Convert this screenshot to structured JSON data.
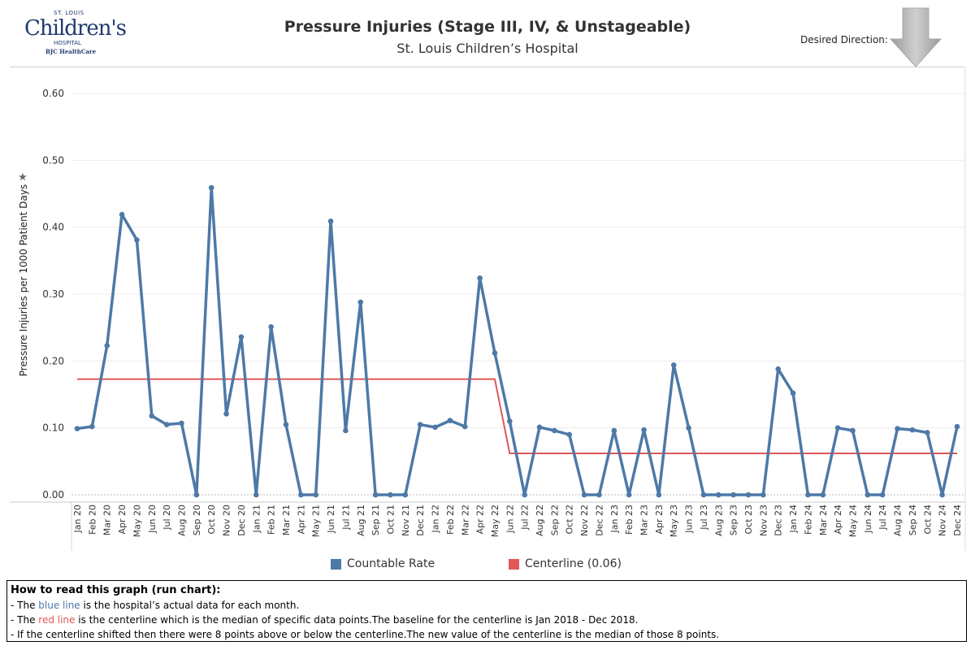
{
  "header": {
    "logo": {
      "line1": "ST. LOUIS",
      "line2": "Children's",
      "line3": "HOSPITAL",
      "line4": "BJC HealthCare"
    },
    "title": "Pressure Injuries (Stage III, IV, & Unstageable)",
    "subtitle": "St. Louis Children’s Hospital",
    "desired_direction_label": "Desired Direction:",
    "desired_direction_icon": "down-arrow-icon"
  },
  "colors": {
    "rate": "#4e79a7",
    "centerline": "#e15759"
  },
  "chart_data": {
    "type": "line",
    "ylabel": "Pressure Injuries per 1000 Patient Days",
    "ylim": [
      0,
      0.63
    ],
    "yticks": [
      "0.00",
      "0.10",
      "0.20",
      "0.30",
      "0.40",
      "0.50",
      "0.60"
    ],
    "grid": true,
    "legend_position": "bottom",
    "categories": [
      "Jan 20",
      "Feb 20",
      "Mar 20",
      "Apr 20",
      "May 20",
      "Jun 20",
      "Jul 20",
      "Aug 20",
      "Sep 20",
      "Oct 20",
      "Nov 20",
      "Dec 20",
      "Jan 21",
      "Feb 21",
      "Mar 21",
      "Apr 21",
      "May 21",
      "Jun 21",
      "Jul 21",
      "Aug 21",
      "Sep 21",
      "Oct 21",
      "Nov 21",
      "Dec 21",
      "Jan 22",
      "Feb 22",
      "Mar 22",
      "Apr 22",
      "May 22",
      "Jun 22",
      "Jul 22",
      "Aug 22",
      "Sep 22",
      "Oct 22",
      "Nov 22",
      "Dec 22",
      "Jan 23",
      "Feb 23",
      "Mar 23",
      "Apr 23",
      "May 23",
      "Jun 23",
      "Jul 23",
      "Aug 23",
      "Sep 23",
      "Oct 23",
      "Nov 23",
      "Dec 23",
      "Jan 24",
      "Feb 24",
      "Mar 24",
      "Apr 24",
      "May 24",
      "Jun 24",
      "Jul 24",
      "Aug 24",
      "Sep 24",
      "Oct 24",
      "Nov 24",
      "Dec 24"
    ],
    "series": [
      {
        "name": "Countable Rate",
        "values": [
          0.099,
          0.102,
          0.223,
          0.419,
          0.381,
          0.118,
          0.105,
          0.107,
          0.0,
          0.459,
          0.121,
          0.236,
          0.0,
          0.251,
          0.105,
          0.0,
          0.0,
          0.409,
          0.096,
          0.288,
          0.0,
          0.0,
          0.0,
          0.105,
          0.101,
          0.111,
          0.102,
          0.324,
          0.212,
          0.11,
          0.0,
          0.101,
          0.096,
          0.09,
          0.0,
          0.0,
          0.096,
          0.0,
          0.097,
          0.0,
          0.194,
          0.1,
          0.0,
          0.0,
          0.0,
          0.0,
          0.0,
          0.188,
          0.152,
          0.0,
          0.0,
          0.1,
          0.096,
          0.0,
          0.0,
          0.099,
          0.097,
          0.093,
          0.0,
          0.102
        ]
      },
      {
        "name": "Centerline (0.06)",
        "values": [
          0.173,
          0.173,
          0.173,
          0.173,
          0.173,
          0.173,
          0.173,
          0.173,
          0.173,
          0.173,
          0.173,
          0.173,
          0.173,
          0.173,
          0.173,
          0.173,
          0.173,
          0.173,
          0.173,
          0.173,
          0.173,
          0.173,
          0.173,
          0.173,
          0.173,
          0.173,
          0.173,
          0.173,
          0.173,
          0.062,
          0.062,
          0.062,
          0.062,
          0.062,
          0.062,
          0.062,
          0.062,
          0.062,
          0.062,
          0.062,
          0.062,
          0.062,
          0.062,
          0.062,
          0.062,
          0.062,
          0.062,
          0.062,
          0.062,
          0.062,
          0.062,
          0.062,
          0.062,
          0.062,
          0.062,
          0.062,
          0.062,
          0.062,
          0.062,
          0.062
        ]
      }
    ]
  },
  "notes": {
    "heading": "How to read this graph (run chart):",
    "line1_pre": "- The ",
    "line1_key": "blue line",
    "line1_post": " is the hospital’s actual data for each month.",
    "line2_pre": "- The ",
    "line2_key": "red line",
    "line2_post": " is the centerline which is the median of specific data points.The baseline for the centerline is Jan 2018 - Dec 2018.",
    "line3": "- If the centerline shifted then there were 8 points above or below the centerline.The new value of the centerline is the median of those 8 points."
  }
}
